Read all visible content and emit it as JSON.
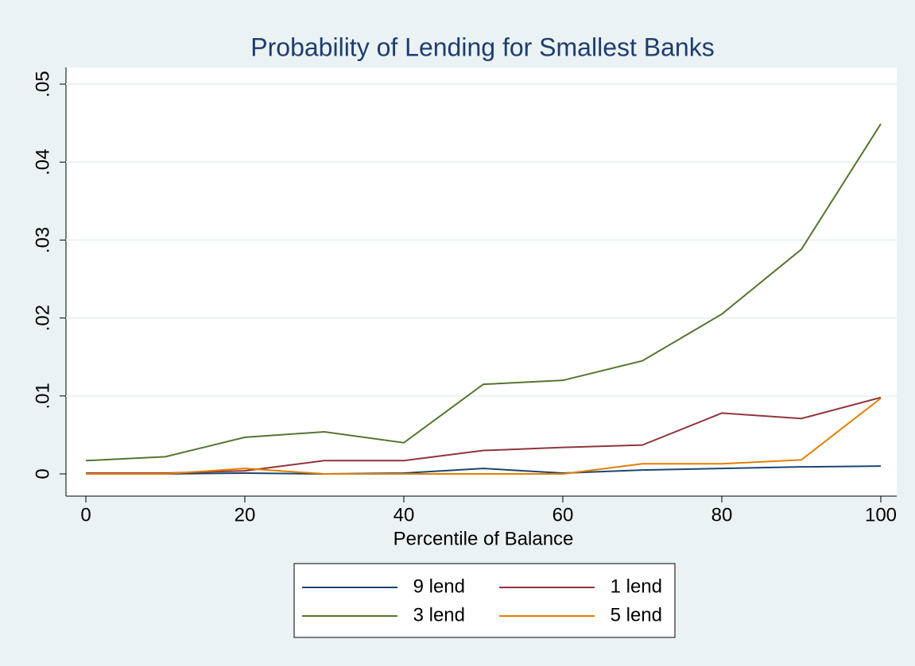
{
  "chart_data": {
    "type": "line",
    "title": "Probability of Lending for Smallest Banks",
    "x_label": "Percentile of Balance",
    "x": [
      0,
      10,
      20,
      30,
      40,
      50,
      60,
      70,
      80,
      90,
      100
    ],
    "series": [
      {
        "name": "9 lend",
        "color": "#1a476f",
        "values": [
          0,
          0,
          0.0001,
          0,
          0.0001,
          0.0007,
          0.0001,
          0.0005,
          0.0007,
          0.0009,
          0.001
        ]
      },
      {
        "name": "1 lend",
        "color": "#90353b",
        "values": [
          0.0001,
          0.0001,
          0.0004,
          0.0017,
          0.0017,
          0.003,
          0.0034,
          0.0037,
          0.0078,
          0.0071,
          0.0098
        ]
      },
      {
        "name": "3 lend",
        "color": "#55752f",
        "values": [
          0.0017,
          0.0022,
          0.0047,
          0.0054,
          0.004,
          0.0115,
          0.012,
          0.0145,
          0.0205,
          0.0288,
          0.0449
        ]
      },
      {
        "name": "5 lend",
        "color": "#e37e00",
        "values": [
          0,
          0,
          0.0007,
          0,
          0,
          0,
          0,
          0.0013,
          0.0013,
          0.0018,
          0.0097
        ]
      }
    ],
    "xlim": [
      0,
      100
    ],
    "xticks": [
      0,
      20,
      40,
      60,
      80,
      100
    ],
    "ylim": [
      0,
      0.05
    ],
    "yticks": [
      0,
      {
        "value": 0.01,
        "label": ".01"
      },
      {
        "value": 0.02,
        "label": ".02"
      },
      {
        "value": 0.03,
        "label": ".03"
      },
      {
        "value": 0.04,
        "label": ".04"
      },
      {
        "value": 0.05,
        "label": ".05"
      }
    ],
    "grid": true
  }
}
